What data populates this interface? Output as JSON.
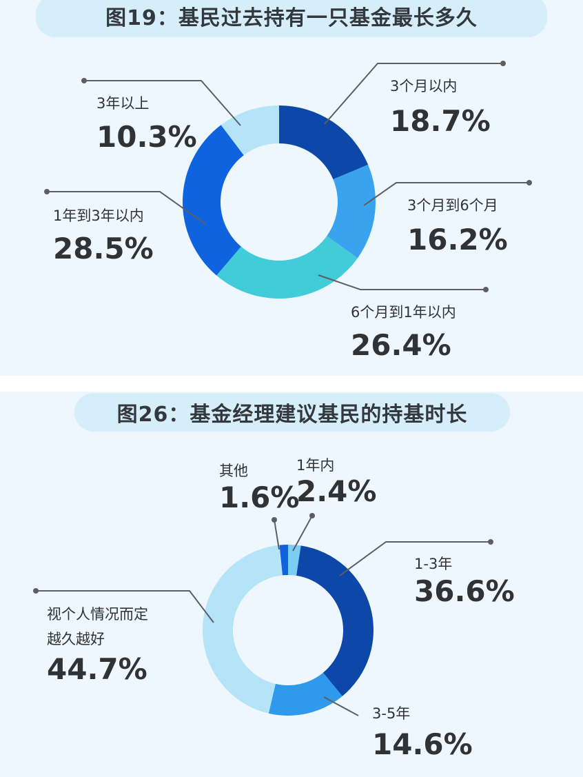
{
  "chart_data": [
    {
      "type": "pie",
      "donut": true,
      "title": "图19：基民过去持有一只基金最长多久",
      "slices": [
        {
          "label": "3个月以内",
          "value": 18.7,
          "value_text": "18.7%",
          "color": "#0d47a8"
        },
        {
          "label": "3个月到6个月",
          "value": 16.2,
          "value_text": "16.2%",
          "color": "#3aa3ef"
        },
        {
          "label": "6个月到1年以内",
          "value": 26.4,
          "value_text": "26.4%",
          "color": "#42cbd8"
        },
        {
          "label": "1年到3年以内",
          "value": 28.5,
          "value_text": "28.5%",
          "color": "#0f63df"
        },
        {
          "label": "3年以上",
          "value": 10.3,
          "value_text": "10.3%",
          "color": "#b5e4f8"
        }
      ]
    },
    {
      "type": "pie",
      "donut": true,
      "title": "图26：基金经理建议基民的持基时长",
      "slices": [
        {
          "label": "1年内",
          "value": 2.4,
          "value_text": "2.4%",
          "color": "#7ccdf5"
        },
        {
          "label": "1-3年",
          "value": 36.6,
          "value_text": "36.6%",
          "color": "#0d47a8"
        },
        {
          "label": "3-5年",
          "value": 14.6,
          "value_text": "14.6%",
          "color": "#2f99ec"
        },
        {
          "label": "视个人情况而定越久越好",
          "label_lines": [
            "视个人情况而定",
            "越久越好"
          ],
          "value": 44.7,
          "value_text": "44.7%",
          "color": "#b5e4f8"
        },
        {
          "label": "其他",
          "value": 1.6,
          "value_text": "1.6%",
          "color": "#0f63df"
        }
      ]
    }
  ]
}
